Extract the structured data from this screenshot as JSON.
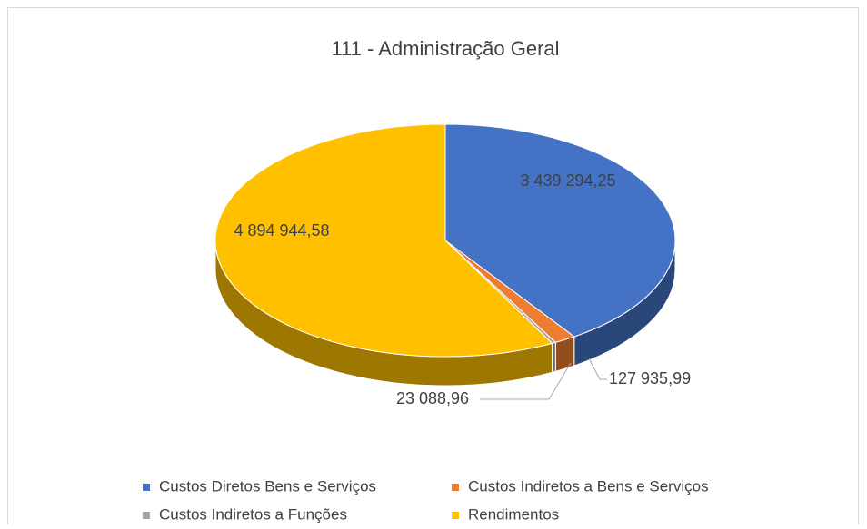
{
  "chart_data": {
    "type": "pie",
    "title": "111 - Administração Geral",
    "categories": [
      "Custos Diretos Bens e Serviços",
      "Custos Indiretos a Bens e Serviços",
      "Custos Indiretos a Funções",
      "Rendimentos"
    ],
    "values": [
      3439294.25,
      127935.99,
      23088.96,
      4894944.58
    ],
    "value_labels": [
      "3 439 294,25",
      "127 935,99",
      "23 088,96",
      "4 894 944,58"
    ],
    "colors": [
      "#4472c4",
      "#ed7d31",
      "#a5a5a5",
      "#ffc000"
    ],
    "legend": "bottom"
  }
}
